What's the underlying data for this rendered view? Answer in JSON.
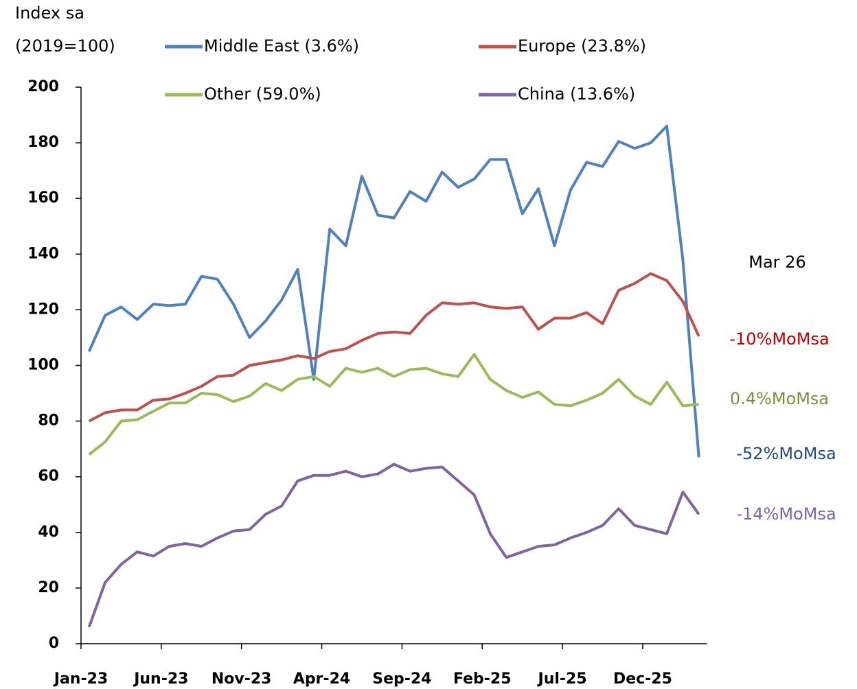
{
  "chart_data": {
    "type": "line",
    "y_label_lines": [
      "Index sa",
      "(2019=100)"
    ],
    "categories": [
      "Jan-23",
      null,
      null,
      null,
      null,
      "Jun-23",
      null,
      null,
      null,
      null,
      "Nov-23",
      null,
      null,
      null,
      null,
      "Apr-24",
      null,
      null,
      null,
      null,
      "Sep-24",
      null,
      null,
      null,
      null,
      "Feb-25",
      null,
      null,
      null,
      null,
      "Jul-25",
      null,
      null,
      null,
      null,
      "Dec-25",
      null,
      null,
      null
    ],
    "ylim": [
      0,
      200
    ],
    "yticks": [
      0,
      20,
      40,
      60,
      80,
      100,
      120,
      140,
      160,
      180,
      200
    ],
    "series": [
      {
        "name": "Middle East (3.6%)",
        "color": "#4f81bd",
        "values": [
          105,
          118,
          121,
          116.5,
          122,
          121.5,
          122,
          132,
          131,
          122,
          110,
          116,
          123.5,
          134.5,
          95,
          149,
          143,
          168,
          154,
          153,
          162.5,
          159,
          169.5,
          164,
          167,
          174,
          174,
          154.5,
          163.5,
          143,
          163,
          173,
          171.5,
          180.5,
          178,
          180,
          186,
          138,
          67
        ]
      },
      {
        "name": "Europe (23.8%)",
        "color": "#c0504d",
        "values": [
          80,
          83,
          84,
          84,
          87.5,
          88,
          90,
          92.5,
          96,
          96.5,
          100,
          101,
          102,
          103.5,
          102.5,
          105,
          106,
          109,
          111.5,
          112,
          111.5,
          118,
          122.5,
          122,
          122.5,
          121,
          120.5,
          121,
          113,
          117,
          117,
          119,
          115,
          127,
          129.5,
          133,
          130.5,
          123,
          110.5
        ]
      },
      {
        "name": "Other (59.0%)",
        "color": "#9bbb59",
        "values": [
          68,
          72.5,
          80,
          80.5,
          83.5,
          86.5,
          86.5,
          90,
          89.5,
          87,
          89,
          93.5,
          91,
          95,
          96,
          92.5,
          99,
          97.5,
          99,
          96,
          98.5,
          99,
          97,
          96,
          104,
          95,
          91,
          88.5,
          90.5,
          86,
          85.5,
          87.5,
          90,
          95,
          89,
          86,
          94,
          85.5,
          86
        ]
      },
      {
        "name": "China (13.6%)",
        "color": "#8064a2",
        "values": [
          6,
          22,
          28.5,
          33,
          31.5,
          35,
          36,
          35,
          38,
          40.5,
          41,
          46.5,
          49.5,
          58.5,
          60.5,
          60.5,
          62,
          60,
          61,
          64.5,
          62,
          63,
          63.5,
          58.5,
          53.5,
          39.5,
          31,
          33,
          35,
          35.5,
          38,
          40,
          42.5,
          48.5,
          42.5,
          41,
          39.5,
          54.5,
          46.5
        ]
      }
    ],
    "annotations": [
      {
        "text": "Mar 26",
        "color": "#000000"
      },
      {
        "text": "-10%MoMsa",
        "color": "#c00000"
      },
      {
        "text": "0.4%MoMsa",
        "color": "#77933c"
      },
      {
        "text": "-52%MoMsa",
        "color": "#1f497d"
      },
      {
        "text": "-14%MoMsa",
        "color": "#8064a2"
      }
    ]
  }
}
